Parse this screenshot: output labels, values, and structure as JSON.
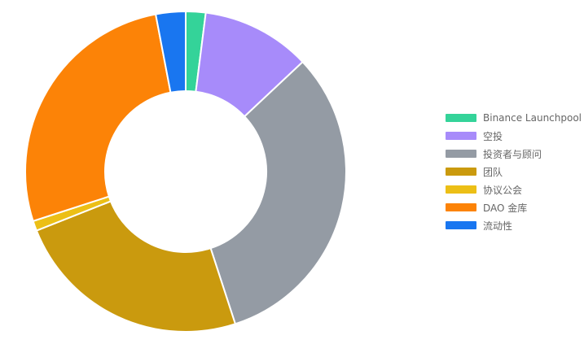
{
  "chart_data": {
    "type": "pie",
    "variant": "doughnut",
    "categories": [
      "Binance Launchpool",
      "空投",
      "投资者与顾问",
      "团队",
      "协议公会",
      "DAO 金库",
      "流动性"
    ],
    "values": [
      2,
      11,
      32,
      24,
      1,
      27,
      3
    ],
    "colors": [
      "#34d399",
      "#a78bfa",
      "#949ba4",
      "#ca9a0e",
      "#ecbf16",
      "#fc8307",
      "#1976f0"
    ],
    "legend_position": "right",
    "title": ""
  }
}
